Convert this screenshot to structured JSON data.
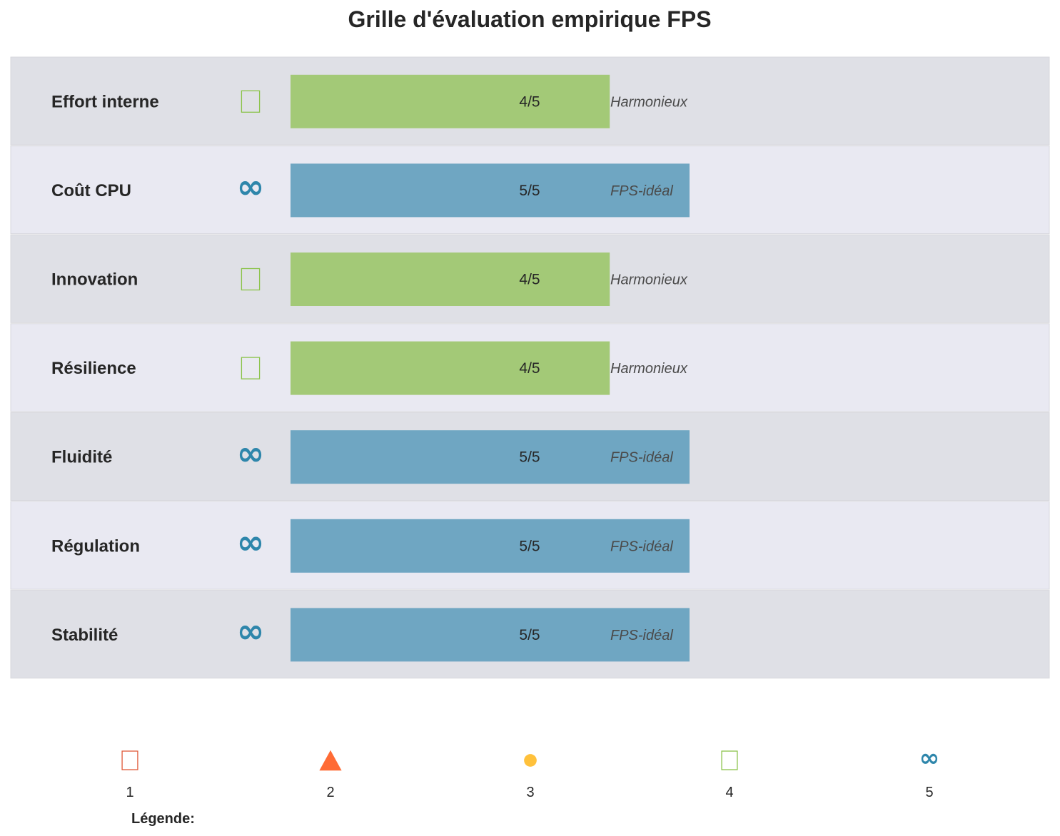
{
  "chart_data": {
    "type": "bar",
    "title": "Grille d'évaluation empirique FPS",
    "max_score": 5,
    "categories": [
      "Effort interne",
      "Coût CPU",
      "Innovation",
      "Résilience",
      "Fluidité",
      "Régulation",
      "Stabilité"
    ],
    "values": [
      4,
      5,
      4,
      4,
      5,
      5,
      5
    ],
    "score_labels": [
      "4/5",
      "5/5",
      "4/5",
      "4/5",
      "5/5",
      "5/5",
      "5/5"
    ],
    "status_labels": [
      "Harmonieux",
      "FPS-idéal",
      "Harmonieux",
      "Harmonieux",
      "FPS-idéal",
      "FPS-idéal",
      "FPS-idéal"
    ],
    "level_styles": {
      "1": {
        "marker": "square",
        "color": "#e05a3a"
      },
      "2": {
        "marker": "triangle",
        "color": "#ff6b35"
      },
      "3": {
        "marker": "circle",
        "color": "#ffc13b"
      },
      "4": {
        "marker": "square",
        "color": "#8bc34a",
        "bar_color": "#a3c977"
      },
      "5": {
        "marker": "infinity",
        "color": "#2e86ab",
        "bar_color": "#6fa6c2"
      }
    },
    "row_colors": [
      "#dfe0e6",
      "#e9e9f2"
    ],
    "legend": {
      "title": "Légende:",
      "entries": [
        {
          "label": "1",
          "marker": "square",
          "color": "#e05a3a"
        },
        {
          "label": "2",
          "marker": "triangle",
          "color": "#ff6b35"
        },
        {
          "label": "3",
          "marker": "circle",
          "color": "#ffc13b"
        },
        {
          "label": "4",
          "marker": "square",
          "color": "#8bc34a"
        },
        {
          "label": "5",
          "marker": "infinity",
          "color": "#2e86ab"
        }
      ]
    },
    "grid": false
  }
}
